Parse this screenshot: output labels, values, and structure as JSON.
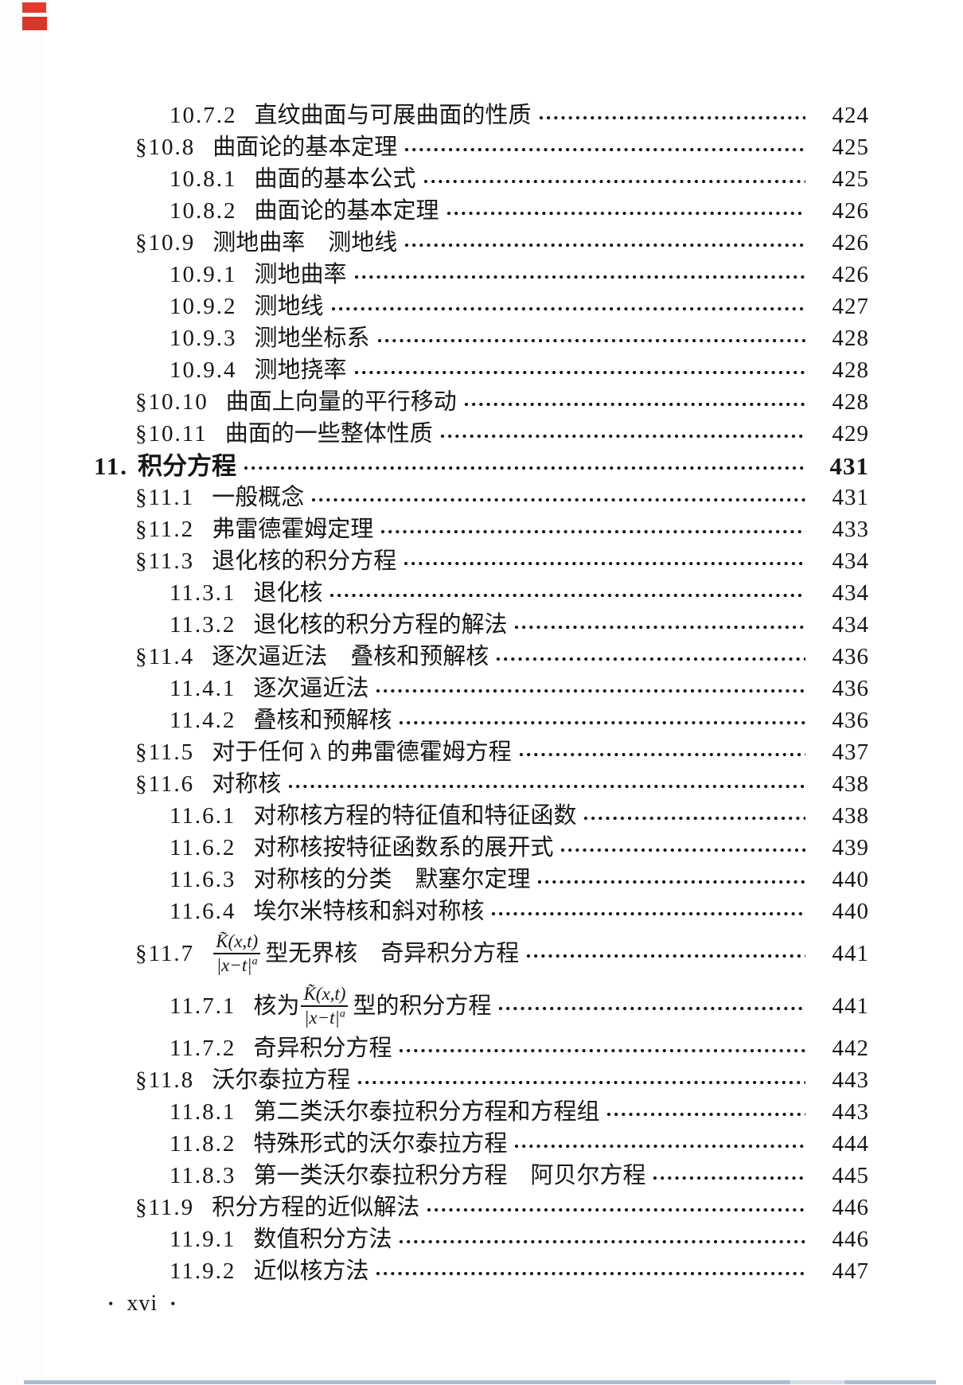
{
  "page": {
    "background": "#ffffff"
  },
  "marks": {
    "red_ink_color": "#e23b2e",
    "bottom_scan_line_color": "#a9bdd2"
  },
  "footer": {
    "bullet": "•",
    "page_label": "xvi"
  },
  "math": {
    "numerator": "K̃(x,t)",
    "denominator": "|x−t|",
    "exponent": "a"
  },
  "toc": {
    "rows": [
      {
        "level": 2,
        "num": "10.7.2",
        "title": "直纹曲面与可展曲面的性质",
        "page": "424"
      },
      {
        "level": 1,
        "num": "§10.8",
        "title": "曲面论的基本定理",
        "page": "425"
      },
      {
        "level": 2,
        "num": "10.8.1",
        "title": "曲面的基本公式",
        "page": "425"
      },
      {
        "level": 2,
        "num": "10.8.2",
        "title": "曲面论的基本定理",
        "page": "426"
      },
      {
        "level": 1,
        "num": "§10.9",
        "title": "测地曲率　测地线",
        "page": "426"
      },
      {
        "level": 2,
        "num": "10.9.1",
        "title": "测地曲率",
        "page": "426"
      },
      {
        "level": 2,
        "num": "10.9.2",
        "title": "测地线",
        "page": "427"
      },
      {
        "level": 2,
        "num": "10.9.3",
        "title": "测地坐标系",
        "page": "428"
      },
      {
        "level": 2,
        "num": "10.9.4",
        "title": "测地挠率",
        "page": "428"
      },
      {
        "level": 1,
        "num": "§10.10",
        "title": "曲面上向量的平行移动",
        "page": "428"
      },
      {
        "level": 1,
        "num": "§10.11",
        "title": "曲面的一些整体性质",
        "page": "429"
      },
      {
        "level": 0,
        "num": "11.",
        "title": "积分方程",
        "page": "431"
      },
      {
        "level": 1,
        "num": "§11.1",
        "title": "一般概念",
        "page": "431"
      },
      {
        "level": 1,
        "num": "§11.2",
        "title": "弗雷德霍姆定理",
        "page": "433"
      },
      {
        "level": 1,
        "num": "§11.3",
        "title": "退化核的积分方程",
        "page": "434"
      },
      {
        "level": 2,
        "num": "11.3.1",
        "title": "退化核",
        "page": "434"
      },
      {
        "level": 2,
        "num": "11.3.2",
        "title": "退化核的积分方程的解法",
        "page": "434"
      },
      {
        "level": 1,
        "num": "§11.4",
        "title": "逐次逼近法　叠核和预解核",
        "page": "436"
      },
      {
        "level": 2,
        "num": "11.4.1",
        "title": "逐次逼近法",
        "page": "436"
      },
      {
        "level": 2,
        "num": "11.4.2",
        "title": "叠核和预解核",
        "page": "436"
      },
      {
        "level": 1,
        "num": "§11.5",
        "title": "对于任何 λ 的弗雷德霍姆方程",
        "page": "437"
      },
      {
        "level": 1,
        "num": "§11.6",
        "title": "对称核",
        "page": "438"
      },
      {
        "level": 2,
        "num": "11.6.1",
        "title": "对称核方程的特征值和特征函数",
        "page": "438"
      },
      {
        "level": 2,
        "num": "11.6.2",
        "title": "对称核按特征函数系的展开式",
        "page": "439"
      },
      {
        "level": 2,
        "num": "11.6.3",
        "title": "对称核的分类　默塞尔定理",
        "page": "440"
      },
      {
        "level": 2,
        "num": "11.6.4",
        "title": "埃尔米特核和斜对称核",
        "page": "440"
      },
      {
        "level": 1,
        "num": "§11.7",
        "frac": true,
        "pre": "",
        "post": "型无界核　奇异积分方程",
        "page": "441"
      },
      {
        "level": 2,
        "num": "11.7.1",
        "frac": true,
        "pre": "核为",
        "post": "型的积分方程",
        "page": "441"
      },
      {
        "level": 2,
        "num": "11.7.2",
        "title": "奇异积分方程",
        "page": "442"
      },
      {
        "level": 1,
        "num": "§11.8",
        "title": "沃尔泰拉方程",
        "page": "443"
      },
      {
        "level": 2,
        "num": "11.8.1",
        "title": "第二类沃尔泰拉积分方程和方程组",
        "page": "443"
      },
      {
        "level": 2,
        "num": "11.8.2",
        "title": "特殊形式的沃尔泰拉方程",
        "page": "444"
      },
      {
        "level": 2,
        "num": "11.8.3",
        "title": "第一类沃尔泰拉积分方程　阿贝尔方程",
        "page": "445"
      },
      {
        "level": 1,
        "num": "§11.9",
        "title": "积分方程的近似解法",
        "page": "446"
      },
      {
        "level": 2,
        "num": "11.9.1",
        "title": "数值积分方法",
        "page": "446"
      },
      {
        "level": 2,
        "num": "11.9.2",
        "title": "近似核方法",
        "page": "447"
      }
    ]
  }
}
